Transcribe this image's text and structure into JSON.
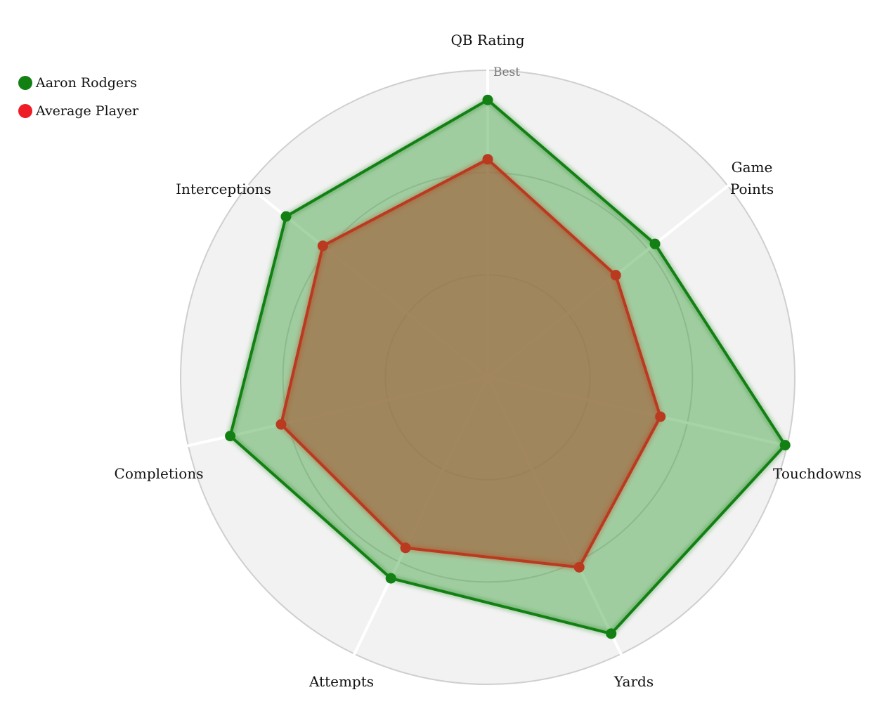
{
  "chart_data": {
    "type": "radar",
    "axes": [
      "QB Rating",
      "Game Points",
      "Touchdowns",
      "Yards",
      "Attempts",
      "Completions",
      "Interceptions"
    ],
    "axis_label_lines": [
      [
        "QB Rating"
      ],
      [
        "Game",
        "Points"
      ],
      [
        "Touchdowns"
      ],
      [
        "Yards"
      ],
      [
        "Attempts"
      ],
      [
        "Completions"
      ],
      [
        "Interceptions"
      ]
    ],
    "scale_max_label": "Best",
    "rmax": 3,
    "rings": [
      1,
      2,
      3
    ],
    "series": [
      {
        "name": "Aaron Rodgers",
        "color": "#138013",
        "fill": "rgba(60,160,60,0.45)",
        "values": [
          2.71,
          2.09,
          2.98,
          2.78,
          2.18,
          2.58,
          2.52
        ]
      },
      {
        "name": "Average Player",
        "color": "#ba3a1f",
        "fill": "rgba(160,110,70,0.75)",
        "values": [
          2.13,
          1.6,
          1.73,
          2.06,
          1.85,
          2.07,
          2.06
        ]
      }
    ],
    "legend_position": "top-left"
  },
  "legend": [
    {
      "label": "Aaron Rodgers",
      "color": "#138013"
    },
    {
      "label": "Average Player",
      "color": "#ee1c25"
    }
  ]
}
